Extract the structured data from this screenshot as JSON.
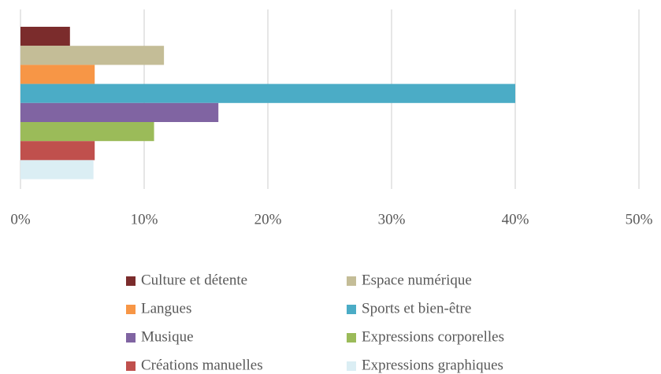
{
  "chart_data": {
    "type": "bar",
    "orientation": "horizontal",
    "series": [
      {
        "name": "Culture et détente",
        "color": "#7b2c2c",
        "values": [
          4
        ]
      },
      {
        "name": "Espace numérique",
        "color": "#c4bd97",
        "values": [
          11.6
        ]
      },
      {
        "name": "Langues",
        "color": "#f79646",
        "values": [
          6
        ]
      },
      {
        "name": "Sports et bien-être",
        "color": "#4bacc6",
        "values": [
          40
        ]
      },
      {
        "name": "Musique",
        "color": "#8064a2",
        "values": [
          16
        ]
      },
      {
        "name": "Expressions corporelles",
        "color": "#9bbb59",
        "values": [
          10.8
        ]
      },
      {
        "name": "Créations manuelles",
        "color": "#c0504d",
        "values": [
          6
        ]
      },
      {
        "name": "Expressions graphiques",
        "color": "#dbeef4",
        "values": [
          5.9
        ]
      }
    ],
    "xlim": [
      0,
      50
    ],
    "xticks": [
      {
        "value": 0,
        "label": "0%"
      },
      {
        "value": 10,
        "label": "10%"
      },
      {
        "value": 20,
        "label": "20%"
      },
      {
        "value": 30,
        "label": "30%"
      },
      {
        "value": 40,
        "label": "40%"
      },
      {
        "value": 50,
        "label": "50%"
      }
    ],
    "grid": true,
    "legend": "bottom"
  }
}
